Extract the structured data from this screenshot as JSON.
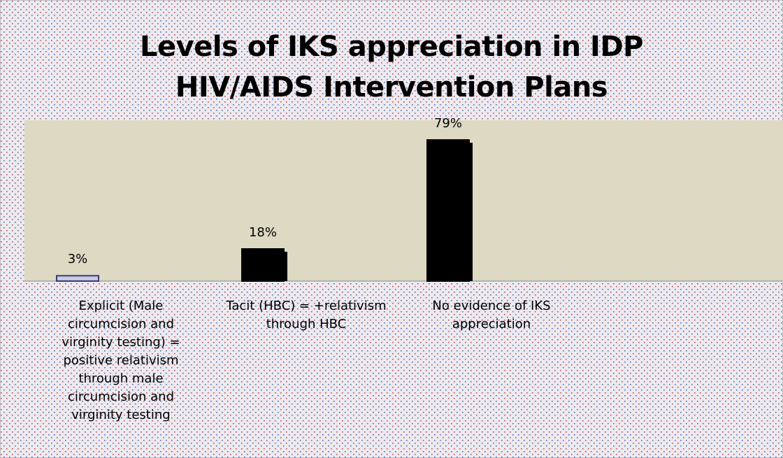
{
  "chart_data": {
    "type": "bar",
    "title": "Levels of IKS appreciation in IDP HIV/AIDS Intervention Plans",
    "categories": [
      "Explicit (Male circumcision and virginity testing) = positive relativism through male circumcision and virginity testing",
      "Tacit (HBC) = +relativism through HBC",
      "No evidence of IKS appreciation"
    ],
    "values": [
      3,
      18,
      79
    ],
    "value_labels": [
      "3%",
      "18%",
      "79%"
    ],
    "colors": [
      "#c9cbe0",
      "#000000",
      "#000000"
    ],
    "ylim": [
      0,
      90
    ]
  }
}
